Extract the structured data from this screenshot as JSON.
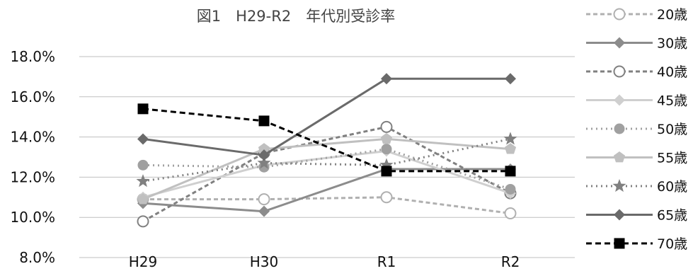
{
  "chart_data": {
    "type": "line",
    "title": "図1　H29-R2　年代別受診率",
    "categories": [
      "H29",
      "H30",
      "R1",
      "R2"
    ],
    "ylim": [
      8.0,
      18.0
    ],
    "yticks": [
      "8.0%",
      "10.0%",
      "12.0%",
      "14.0%",
      "16.0%",
      "18.0%"
    ],
    "ytick_values": [
      8,
      10,
      12,
      14,
      16,
      18
    ],
    "grid": true,
    "legend_position": "right",
    "series": [
      {
        "name": "20歳",
        "values": [
          10.9,
          10.9,
          11.0,
          10.2
        ],
        "color": "#b0b0b0",
        "dash": "6,4",
        "marker": "circle-open",
        "width": 3
      },
      {
        "name": "30歳",
        "values": [
          10.7,
          10.3,
          12.4,
          12.4
        ],
        "color": "#8c8c8c",
        "dash": "",
        "marker": "diamond",
        "width": 3
      },
      {
        "name": "40歳",
        "values": [
          9.8,
          13.2,
          14.5,
          11.2
        ],
        "color": "#808080",
        "dash": "6,4",
        "marker": "circle-open",
        "width": 3
      },
      {
        "name": "45歳",
        "values": [
          11.0,
          12.6,
          13.3,
          11.2
        ],
        "color": "#cfcfcf",
        "dash": "",
        "marker": "diamond",
        "width": 3
      },
      {
        "name": "50歳",
        "values": [
          12.6,
          12.5,
          13.4,
          11.4
        ],
        "color": "#a0a0a0",
        "dash": "2,5",
        "marker": "circle",
        "width": 3
      },
      {
        "name": "55歳",
        "values": [
          10.9,
          13.4,
          13.9,
          13.4
        ],
        "color": "#c0c0c0",
        "dash": "",
        "marker": "pentagon",
        "width": 3
      },
      {
        "name": "60歳",
        "values": [
          11.8,
          12.7,
          12.6,
          13.9
        ],
        "color": "#808080",
        "dash": "2,5",
        "marker": "star",
        "width": 3
      },
      {
        "name": "65歳",
        "values": [
          13.9,
          13.1,
          16.9,
          16.9
        ],
        "color": "#6a6a6a",
        "dash": "",
        "marker": "diamond",
        "width": 3
      },
      {
        "name": "70歳",
        "values": [
          15.4,
          14.8,
          12.3,
          12.3
        ],
        "color": "#000000",
        "dash": "8,5",
        "marker": "square",
        "width": 3
      }
    ]
  }
}
